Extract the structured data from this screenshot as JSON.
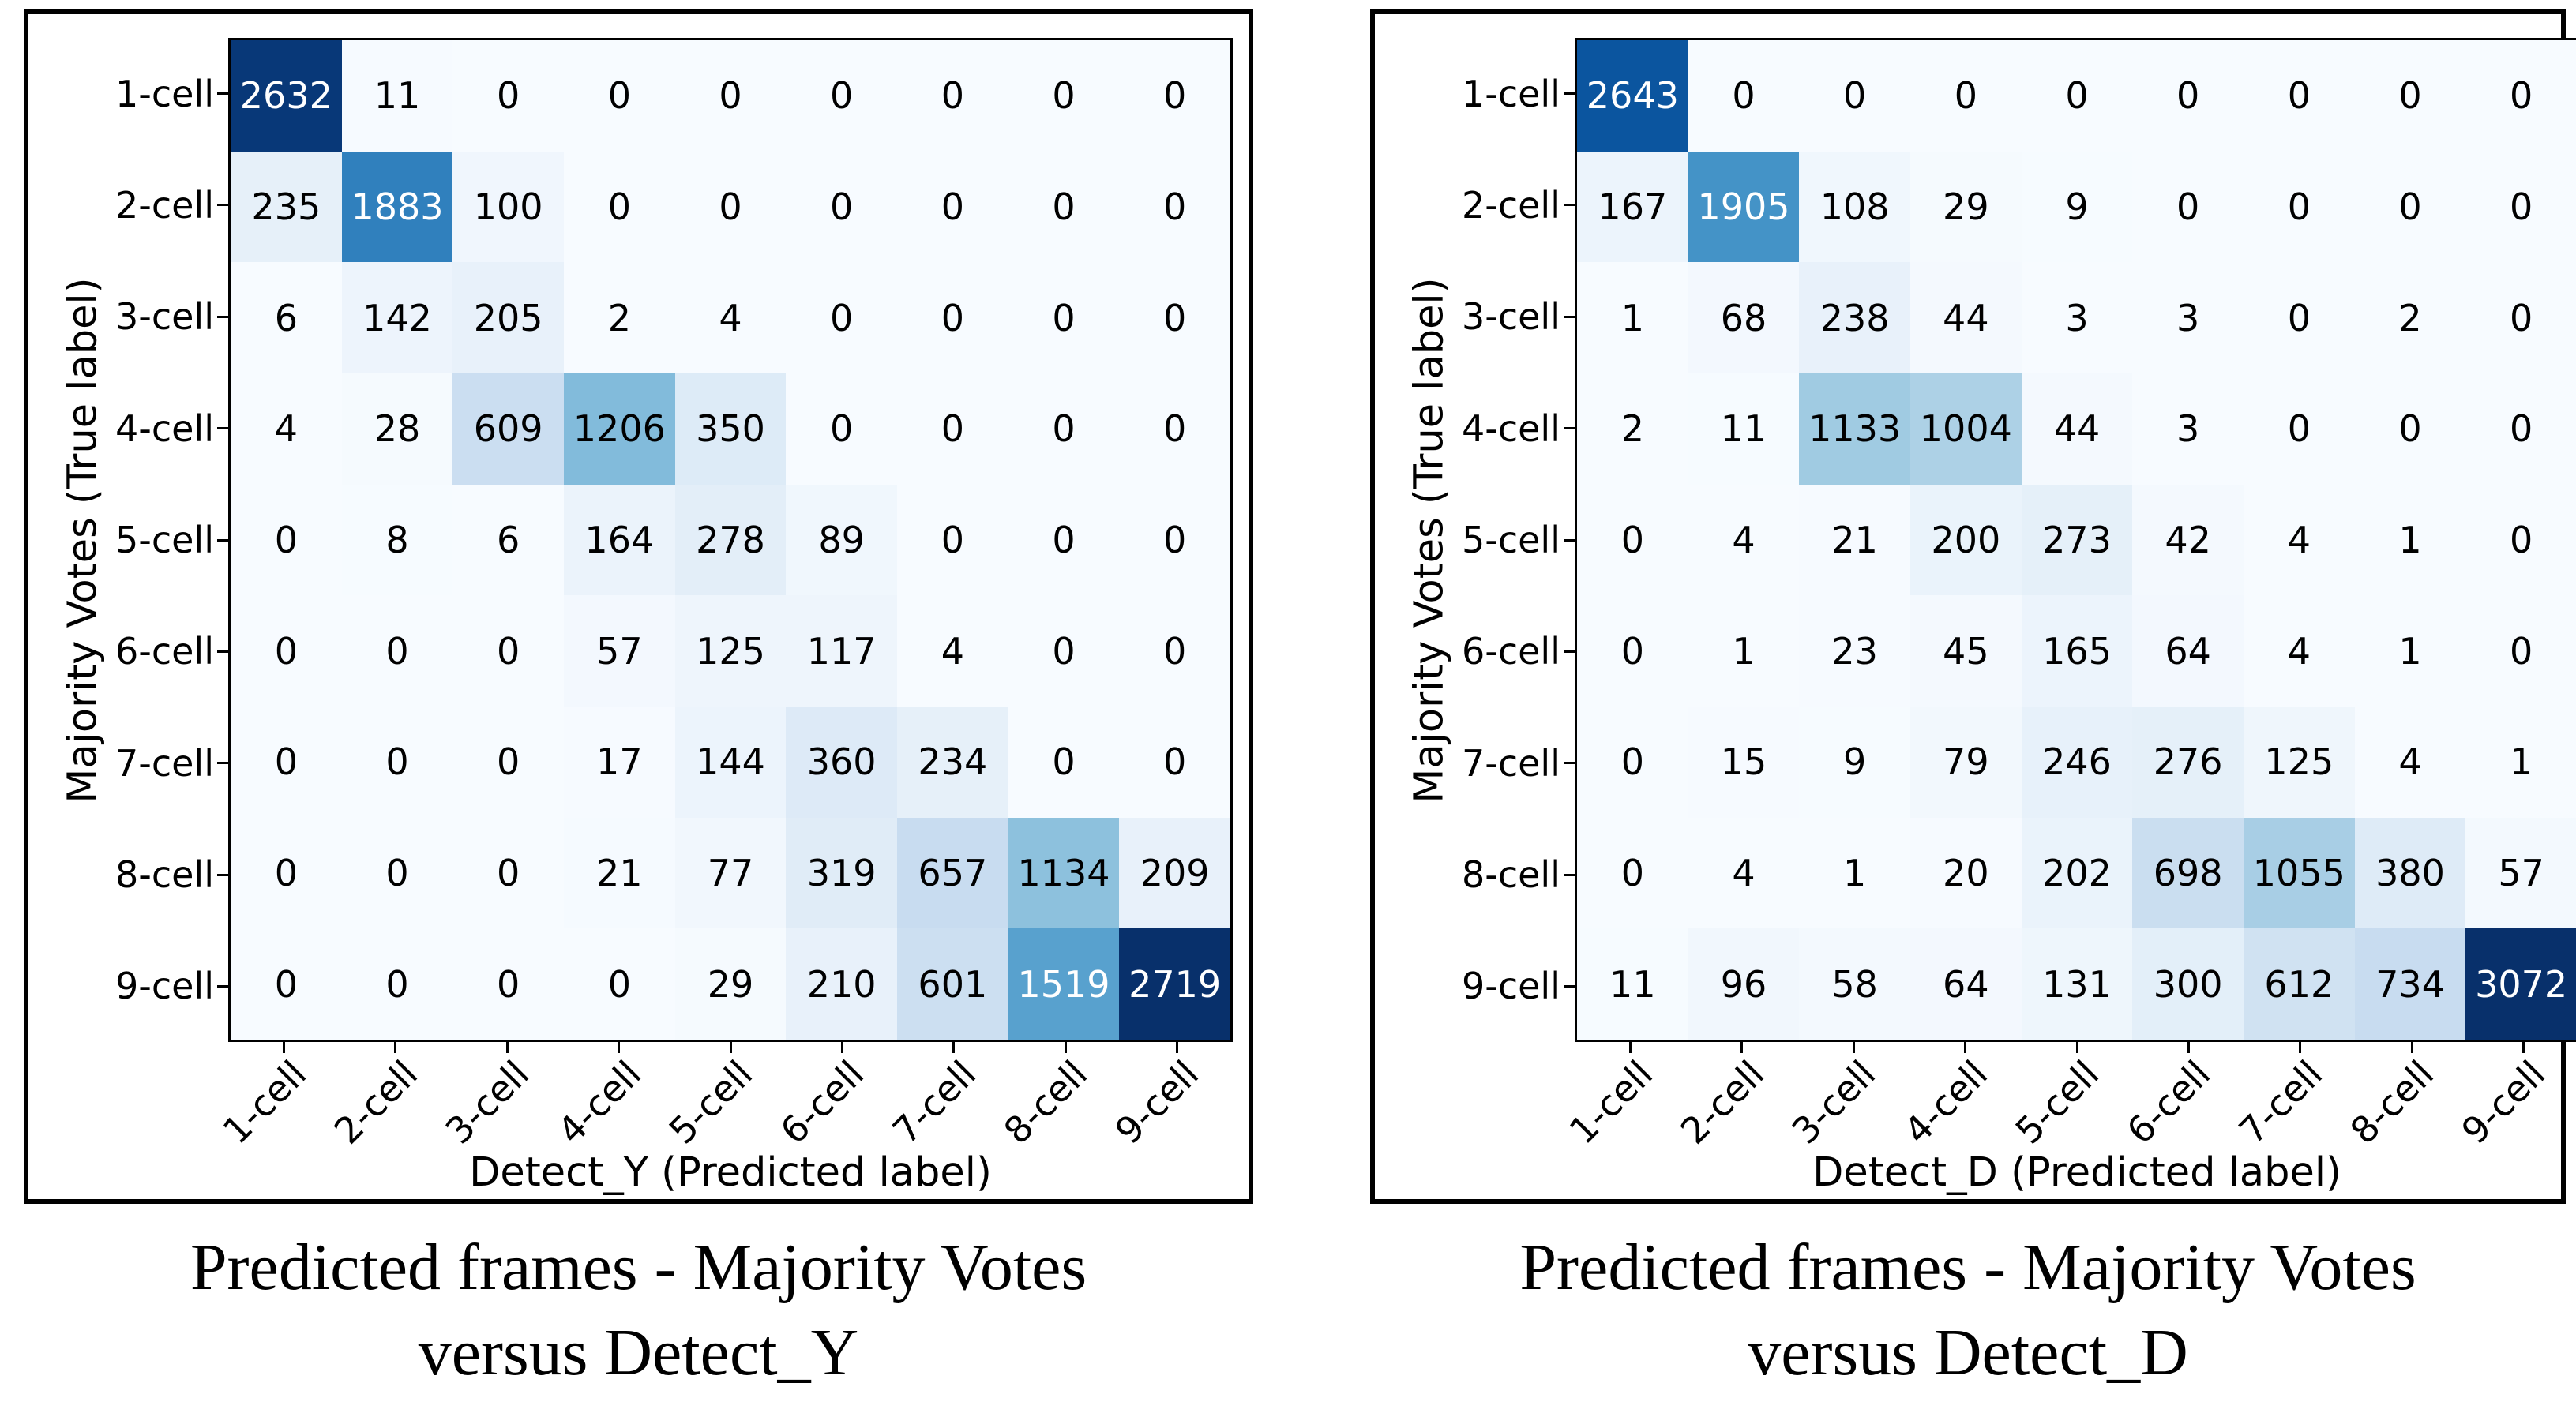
{
  "colors": {
    "background": "#ffffff",
    "frame_border": "#000000",
    "text": "#000000",
    "colormap_low": "#f7fbff",
    "colormap_high": "#08306b",
    "cell_text_light": "#ffffff",
    "cell_text_dark": "#000000"
  },
  "chart_data": [
    {
      "type": "heatmap",
      "panel": "left",
      "title": "Predicted frames - Majority Votes versus Detect_Y",
      "caption_lines": [
        "Predicted frames - Majority Votes",
        "versus Detect_Y"
      ],
      "xlabel": "Detect_Y (Predicted label)",
      "ylabel": "Majority Votes (True label)",
      "x_categories": [
        "1-cell",
        "2-cell",
        "3-cell",
        "4-cell",
        "5-cell",
        "6-cell",
        "7-cell",
        "8-cell",
        "9-cell"
      ],
      "y_categories": [
        "1-cell",
        "2-cell",
        "3-cell",
        "4-cell",
        "5-cell",
        "6-cell",
        "7-cell",
        "8-cell",
        "9-cell"
      ],
      "values": [
        [
          2632,
          11,
          0,
          0,
          0,
          0,
          0,
          0,
          0
        ],
        [
          235,
          1883,
          100,
          0,
          0,
          0,
          0,
          0,
          0
        ],
        [
          6,
          142,
          205,
          2,
          4,
          0,
          0,
          0,
          0
        ],
        [
          4,
          28,
          609,
          1206,
          350,
          0,
          0,
          0,
          0
        ],
        [
          0,
          8,
          6,
          164,
          278,
          89,
          0,
          0,
          0
        ],
        [
          0,
          0,
          0,
          57,
          125,
          117,
          4,
          0,
          0
        ],
        [
          0,
          0,
          0,
          17,
          144,
          360,
          234,
          0,
          0
        ],
        [
          0,
          0,
          0,
          21,
          77,
          319,
          657,
          1134,
          209
        ],
        [
          0,
          0,
          0,
          0,
          29,
          210,
          601,
          1519,
          2719
        ]
      ],
      "vmin": 0,
      "vmax": 2719,
      "colormap": "Blues",
      "grid": false,
      "legend": "none"
    },
    {
      "type": "heatmap",
      "panel": "right",
      "title": "Predicted frames - Majority Votes versus Detect_D",
      "caption_lines": [
        "Predicted frames - Majority Votes",
        "versus Detect_D"
      ],
      "xlabel": "Detect_D (Predicted label)",
      "ylabel": "Majority Votes (True label)",
      "x_categories": [
        "1-cell",
        "2-cell",
        "3-cell",
        "4-cell",
        "5-cell",
        "6-cell",
        "7-cell",
        "8-cell",
        "9-cell"
      ],
      "y_categories": [
        "1-cell",
        "2-cell",
        "3-cell",
        "4-cell",
        "5-cell",
        "6-cell",
        "7-cell",
        "8-cell",
        "9-cell"
      ],
      "values": [
        [
          2643,
          0,
          0,
          0,
          0,
          0,
          0,
          0,
          0
        ],
        [
          167,
          1905,
          108,
          29,
          9,
          0,
          0,
          0,
          0
        ],
        [
          1,
          68,
          238,
          44,
          3,
          3,
          0,
          2,
          0
        ],
        [
          2,
          11,
          1133,
          1004,
          44,
          3,
          0,
          0,
          0
        ],
        [
          0,
          4,
          21,
          200,
          273,
          42,
          4,
          1,
          0
        ],
        [
          0,
          1,
          23,
          45,
          165,
          64,
          4,
          1,
          0
        ],
        [
          0,
          15,
          9,
          79,
          246,
          276,
          125,
          4,
          1
        ],
        [
          0,
          4,
          1,
          20,
          202,
          698,
          1055,
          380,
          57
        ],
        [
          11,
          96,
          58,
          64,
          131,
          300,
          612,
          734,
          3072
        ]
      ],
      "vmin": 0,
      "vmax": 3072,
      "colormap": "Blues",
      "grid": false,
      "legend": "none"
    }
  ]
}
